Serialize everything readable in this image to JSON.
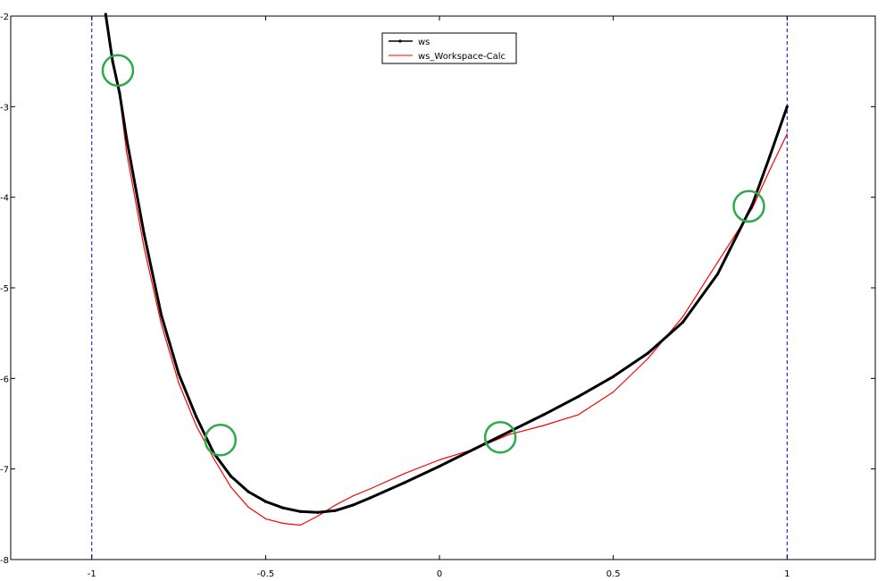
{
  "chart_data": {
    "type": "line",
    "title": "",
    "xlabel": "",
    "ylabel": "",
    "xlim": [
      -1.2332,
      1.2536
    ],
    "ylim": [
      -8,
      -2
    ],
    "x_ticks": [
      -1,
      -0.5,
      0,
      0.5,
      1
    ],
    "x_tick_labels": [
      "-1",
      "-0.5",
      "0",
      "0.5",
      "1"
    ],
    "y_ticks": [
      -2,
      -3,
      -4,
      -5,
      -6,
      -7,
      -8
    ],
    "y_tick_labels": [
      "-2",
      "-3",
      "-4",
      "-5",
      "-6",
      "-7",
      "-8"
    ],
    "grid": false,
    "legend_position": "top-center",
    "vertical_reference_lines": [
      -1,
      1
    ],
    "series": [
      {
        "name": "ws",
        "color": "#000000",
        "marker": "dot",
        "x": [
          -0.96,
          -0.94,
          -0.92,
          -0.9,
          -0.85,
          -0.8,
          -0.75,
          -0.7,
          -0.65,
          -0.6,
          -0.55,
          -0.5,
          -0.45,
          -0.4,
          -0.35,
          -0.3,
          -0.25,
          -0.2,
          -0.1,
          0,
          0.1,
          0.2,
          0.3,
          0.4,
          0.5,
          0.6,
          0.7,
          0.8,
          0.9,
          0.95,
          1.0
        ],
        "y": [
          -1.98,
          -2.5,
          -2.85,
          -3.35,
          -4.4,
          -5.3,
          -5.95,
          -6.42,
          -6.82,
          -7.08,
          -7.25,
          -7.36,
          -7.43,
          -7.47,
          -7.48,
          -7.46,
          -7.4,
          -7.32,
          -7.15,
          -6.97,
          -6.78,
          -6.59,
          -6.4,
          -6.2,
          -5.98,
          -5.72,
          -5.38,
          -4.85,
          -4.08,
          -3.55,
          -3.0
        ]
      },
      {
        "name": "ws_Workspace-Calc",
        "color": "#ff0000",
        "x": [
          -0.96,
          -0.94,
          -0.92,
          -0.9,
          -0.85,
          -0.8,
          -0.75,
          -0.7,
          -0.65,
          -0.6,
          -0.55,
          -0.5,
          -0.45,
          -0.4,
          -0.35,
          -0.3,
          -0.25,
          -0.2,
          -0.1,
          0,
          0.1,
          0.2,
          0.3,
          0.4,
          0.5,
          0.6,
          0.7,
          0.8,
          0.9,
          0.95,
          1.0
        ],
        "y": [
          -1.98,
          -2.5,
          -2.88,
          -3.5,
          -4.55,
          -5.4,
          -6.05,
          -6.52,
          -6.88,
          -7.2,
          -7.42,
          -7.55,
          -7.6,
          -7.62,
          -7.52,
          -7.4,
          -7.3,
          -7.22,
          -7.05,
          -6.9,
          -6.78,
          -6.62,
          -6.52,
          -6.4,
          -6.15,
          -5.78,
          -5.32,
          -4.72,
          -4.12,
          -3.7,
          -3.3
        ]
      }
    ],
    "annotations": {
      "circle_color": "#2eaa4a",
      "circles": [
        {
          "x": -0.925,
          "y": -2.6
        },
        {
          "x": -0.63,
          "y": -6.68
        },
        {
          "x": 0.175,
          "y": -6.65
        },
        {
          "x": 0.89,
          "y": -4.1
        }
      ]
    }
  }
}
